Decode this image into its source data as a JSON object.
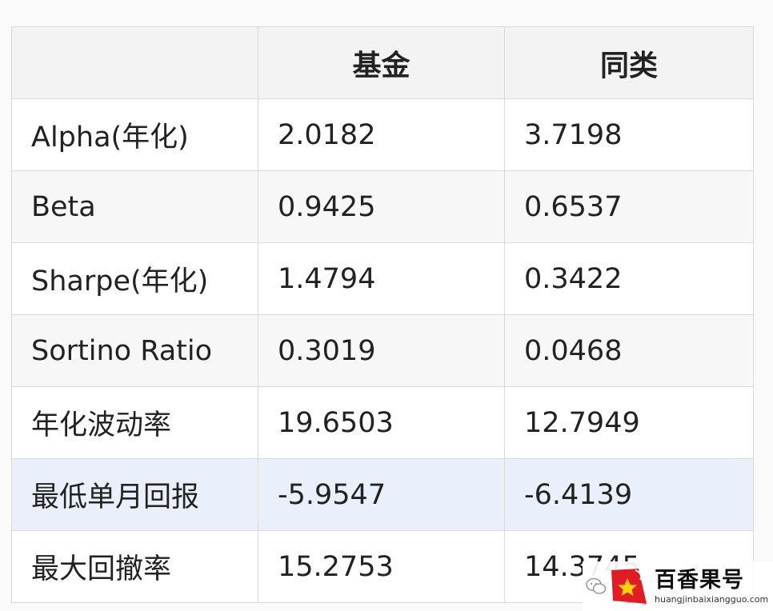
{
  "table": {
    "headers": [
      "",
      "基金",
      "同类"
    ],
    "rows": [
      {
        "metric": "Alpha(年化)",
        "fund": "2.0182",
        "peer": "3.7198"
      },
      {
        "metric": "Beta",
        "fund": "0.9425",
        "peer": "0.6537"
      },
      {
        "metric": "Sharpe(年化)",
        "fund": "1.4794",
        "peer": "0.3422"
      },
      {
        "metric": "Sortino Ratio",
        "fund": "0.3019",
        "peer": "0.0468"
      },
      {
        "metric": "年化波动率",
        "fund": "19.6503",
        "peer": "12.7949"
      },
      {
        "metric": "最低单月回报",
        "fund": "-5.9547",
        "peer": "-6.4139"
      },
      {
        "metric": "最大回撤率",
        "fund": "15.2753",
        "peer": "14.3745"
      }
    ]
  },
  "watermark": {
    "icon": "wechat-icon",
    "logo": "star-logo",
    "title": "百香果号",
    "url": "huangjinbaixiangguo.com",
    "accent_color": "#e31b23"
  }
}
